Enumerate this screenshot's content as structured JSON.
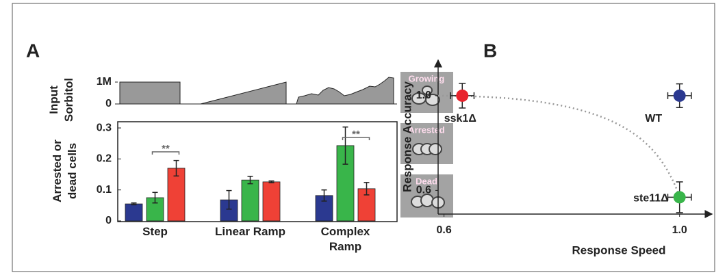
{
  "panels": [
    "A",
    "B"
  ],
  "input_panel": {
    "ylabel": "Input Sorbitol",
    "ylim": [
      0,
      1
    ],
    "yticks": [
      {
        "value": 0,
        "label": "0"
      },
      {
        "value": 1,
        "label": "1M"
      }
    ]
  },
  "images": [
    "Growing",
    "Arrested",
    "Dead"
  ],
  "chart_data": [
    {
      "type": "bar",
      "ylabel": "Arrested or dead cells",
      "categories": [
        "Step",
        "Linear Ramp",
        "Complex Ramp"
      ],
      "series": [
        {
          "color": "#2b3990",
          "values": [
            0.055,
            0.068,
            0.082
          ],
          "errors": [
            0.003,
            0.03,
            0.018
          ]
        },
        {
          "color": "#39b54a",
          "values": [
            0.075,
            0.132,
            0.243
          ],
          "errors": [
            0.017,
            0.012,
            0.06
          ]
        },
        {
          "color": "#ef4136",
          "values": [
            0.17,
            0.126,
            0.104
          ],
          "errors": [
            0.025,
            0.003,
            0.02
          ]
        }
      ],
      "ylim": [
        0,
        0.32
      ],
      "yticks": [
        0,
        0.1,
        0.2,
        0.3
      ],
      "significance": [
        {
          "category": 0,
          "label": "**"
        },
        {
          "category": 2,
          "label": "**"
        }
      ]
    },
    {
      "type": "scatter",
      "xlabel": "Response Speed",
      "ylabel": "Response Accuracy",
      "xlim": [
        0.59,
        1.055
      ],
      "ylim": [
        0.5,
        1.15
      ],
      "xticks": [
        0.6,
        {
          "value": 1,
          "label": "1.0"
        }
      ],
      "yticks": [
        0.6,
        {
          "value": 1,
          "label": "1.0"
        }
      ],
      "series": [
        {
          "name": "ssk1Δ",
          "color": "#e8232d",
          "x": [
            0.631
          ],
          "values": [
            1.0
          ],
          "xerr": [
            0.02
          ],
          "yerr": [
            0.052
          ]
        },
        {
          "name": "WT",
          "color": "#2b3990",
          "x": [
            1.0
          ],
          "values": [
            1.0
          ],
          "xerr": [
            0.02
          ],
          "yerr": [
            0.05
          ]
        },
        {
          "name": "ste11Δ",
          "color": "#39b54a",
          "x": [
            1.0
          ],
          "values": [
            0.571
          ],
          "xerr": [
            0.02
          ],
          "yerr": [
            0.065
          ]
        }
      ]
    }
  ]
}
